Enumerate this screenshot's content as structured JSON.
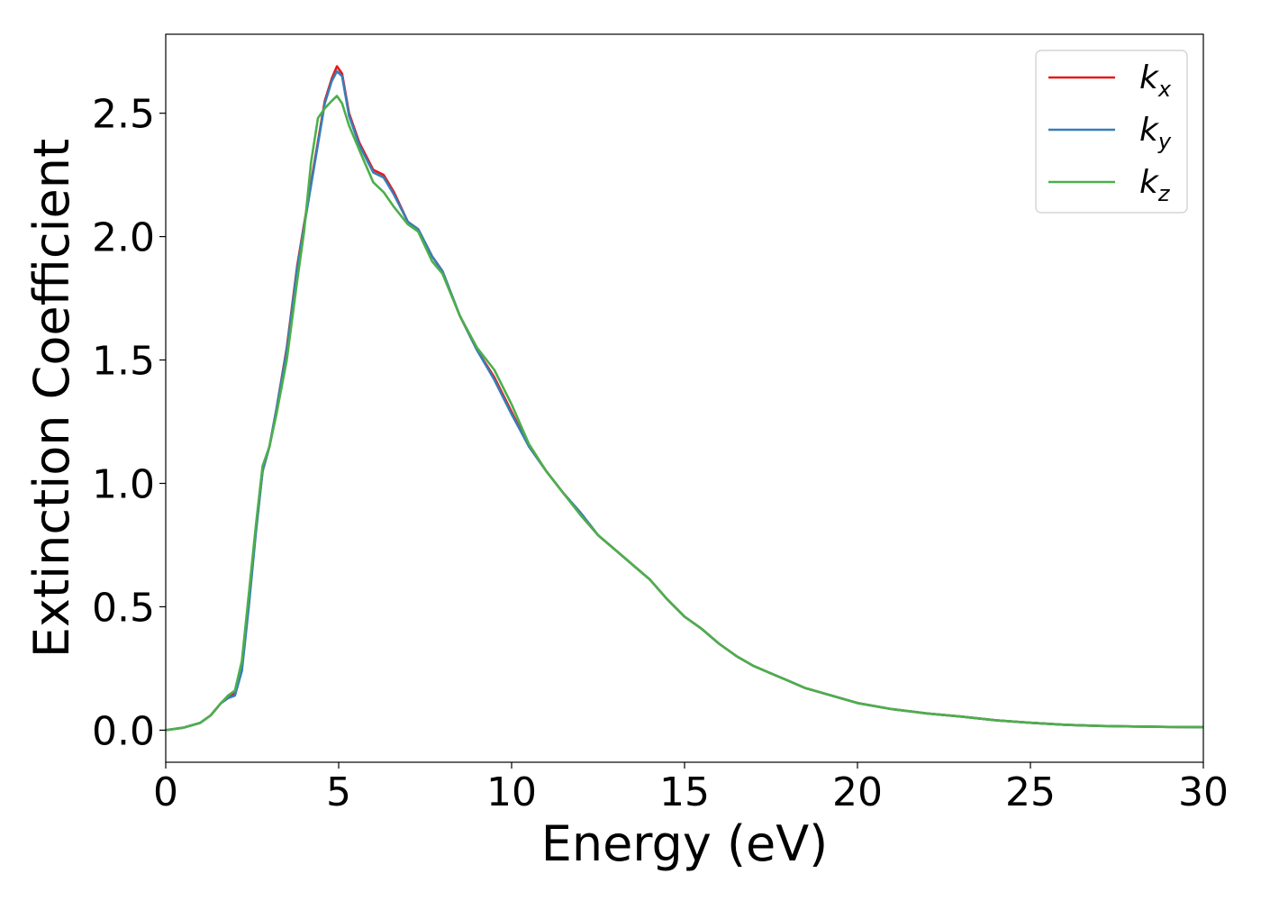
{
  "chart_data": {
    "type": "line",
    "xlabel": "Energy (eV)",
    "ylabel": "Extinction Coefficient",
    "xlim": [
      0,
      30
    ],
    "ylim": [
      -0.13,
      2.82
    ],
    "xticks": [
      0,
      5,
      10,
      15,
      20,
      25,
      30
    ],
    "xtick_labels": [
      "0",
      "5",
      "10",
      "15",
      "20",
      "25",
      "30"
    ],
    "yticks": [
      0.0,
      0.5,
      1.0,
      1.5,
      2.0,
      2.5
    ],
    "ytick_labels": [
      "0.0",
      "0.5",
      "1.0",
      "1.5",
      "2.0",
      "2.5"
    ],
    "grid": false,
    "legend_position": "top-right",
    "series": [
      {
        "name": "k_x",
        "label_main": "k",
        "label_sub": "x",
        "color": "#e41a1c",
        "x": [
          0,
          0.5,
          1.0,
          1.3,
          1.6,
          1.8,
          2.0,
          2.2,
          2.4,
          2.6,
          2.8,
          3.0,
          3.2,
          3.5,
          3.8,
          4.0,
          4.3,
          4.6,
          4.8,
          4.95,
          5.1,
          5.3,
          5.6,
          6.0,
          6.3,
          6.6,
          7.0,
          7.3,
          7.7,
          8.0,
          8.5,
          9.0,
          9.5,
          10.0,
          10.5,
          11.0,
          11.5,
          12.0,
          12.5,
          13.0,
          13.5,
          14.0,
          14.5,
          15.0,
          15.5,
          16.0,
          16.5,
          17.0,
          17.5,
          18.0,
          18.5,
          19.0,
          20.0,
          21.0,
          22.0,
          23.0,
          24.0,
          25.0,
          26.0,
          27.0,
          28.0,
          29.0,
          30.0
        ],
        "y": [
          0.0,
          0.01,
          0.03,
          0.06,
          0.11,
          0.13,
          0.15,
          0.25,
          0.52,
          0.8,
          1.05,
          1.15,
          1.3,
          1.55,
          1.88,
          2.05,
          2.3,
          2.55,
          2.64,
          2.69,
          2.66,
          2.5,
          2.38,
          2.27,
          2.25,
          2.18,
          2.06,
          2.03,
          1.92,
          1.86,
          1.68,
          1.54,
          1.43,
          1.29,
          1.15,
          1.05,
          0.96,
          0.88,
          0.79,
          0.73,
          0.67,
          0.61,
          0.53,
          0.46,
          0.41,
          0.35,
          0.3,
          0.26,
          0.23,
          0.2,
          0.17,
          0.15,
          0.11,
          0.085,
          0.068,
          0.055,
          0.04,
          0.03,
          0.022,
          0.017,
          0.015,
          0.013,
          0.012
        ]
      },
      {
        "name": "k_y",
        "label_main": "k",
        "label_sub": "y",
        "color": "#377eb8",
        "x": [
          0,
          0.5,
          1.0,
          1.3,
          1.6,
          1.8,
          2.0,
          2.2,
          2.4,
          2.6,
          2.8,
          3.0,
          3.2,
          3.5,
          3.8,
          4.0,
          4.3,
          4.6,
          4.8,
          4.95,
          5.1,
          5.3,
          5.6,
          6.0,
          6.3,
          6.6,
          7.0,
          7.3,
          7.7,
          8.0,
          8.5,
          9.0,
          9.5,
          10.0,
          10.5,
          11.0,
          11.5,
          12.0,
          12.5,
          13.0,
          13.5,
          14.0,
          14.5,
          15.0,
          15.5,
          16.0,
          16.5,
          17.0,
          17.5,
          18.0,
          18.5,
          19.0,
          20.0,
          21.0,
          22.0,
          23.0,
          24.0,
          25.0,
          26.0,
          27.0,
          28.0,
          29.0,
          30.0
        ],
        "y": [
          0.0,
          0.01,
          0.03,
          0.06,
          0.11,
          0.13,
          0.14,
          0.24,
          0.5,
          0.79,
          1.05,
          1.15,
          1.3,
          1.54,
          1.87,
          2.04,
          2.29,
          2.54,
          2.63,
          2.67,
          2.65,
          2.49,
          2.37,
          2.26,
          2.24,
          2.17,
          2.06,
          2.03,
          1.92,
          1.86,
          1.68,
          1.54,
          1.42,
          1.28,
          1.15,
          1.05,
          0.96,
          0.88,
          0.79,
          0.73,
          0.67,
          0.61,
          0.53,
          0.46,
          0.41,
          0.35,
          0.3,
          0.26,
          0.23,
          0.2,
          0.17,
          0.15,
          0.11,
          0.085,
          0.068,
          0.055,
          0.04,
          0.03,
          0.022,
          0.017,
          0.015,
          0.013,
          0.012
        ]
      },
      {
        "name": "k_z",
        "label_main": "k",
        "label_sub": "z",
        "color": "#4daf4a",
        "x": [
          0,
          0.5,
          1.0,
          1.3,
          1.6,
          1.8,
          2.0,
          2.2,
          2.4,
          2.6,
          2.8,
          3.0,
          3.2,
          3.5,
          3.8,
          4.0,
          4.2,
          4.4,
          4.6,
          4.8,
          4.95,
          5.1,
          5.3,
          5.6,
          6.0,
          6.3,
          6.6,
          7.0,
          7.3,
          7.7,
          8.0,
          8.5,
          9.0,
          9.5,
          10.0,
          10.5,
          11.0,
          11.5,
          12.0,
          12.5,
          13.0,
          13.5,
          14.0,
          14.5,
          15.0,
          15.5,
          16.0,
          16.5,
          17.0,
          17.5,
          18.0,
          18.5,
          19.0,
          20.0,
          21.0,
          22.0,
          23.0,
          24.0,
          25.0,
          26.0,
          27.0,
          28.0,
          29.0,
          30.0
        ],
        "y": [
          0.0,
          0.01,
          0.03,
          0.06,
          0.11,
          0.14,
          0.16,
          0.28,
          0.55,
          0.82,
          1.07,
          1.15,
          1.28,
          1.5,
          1.82,
          2.02,
          2.3,
          2.48,
          2.52,
          2.55,
          2.57,
          2.54,
          2.45,
          2.35,
          2.22,
          2.18,
          2.12,
          2.05,
          2.02,
          1.9,
          1.85,
          1.68,
          1.55,
          1.46,
          1.32,
          1.16,
          1.05,
          0.96,
          0.87,
          0.79,
          0.73,
          0.67,
          0.61,
          0.53,
          0.46,
          0.41,
          0.35,
          0.3,
          0.26,
          0.23,
          0.2,
          0.17,
          0.15,
          0.11,
          0.085,
          0.068,
          0.055,
          0.04,
          0.03,
          0.022,
          0.017,
          0.015,
          0.013,
          0.012
        ]
      }
    ]
  }
}
